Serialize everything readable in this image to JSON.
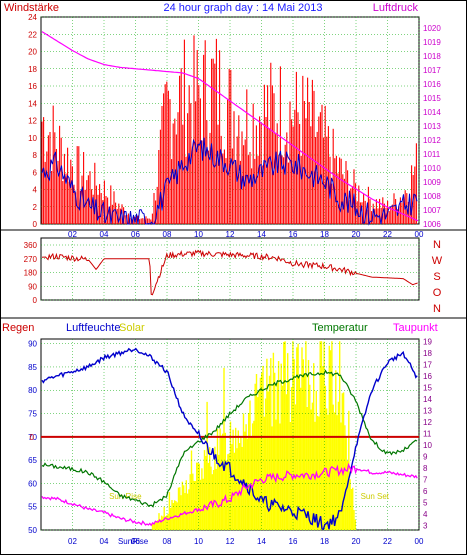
{
  "header": {
    "title": "24 hour graph day : 14 Mai 2013",
    "left_label": "Windstärke",
    "right_label": "Luftdruck"
  },
  "colors": {
    "title": "#1a1aff",
    "windspeed": "#ff0000",
    "gust": "#ff0000",
    "avg_wind": "#0000cc",
    "pressure": "#ff00ff",
    "direction": "#cc0000",
    "humidity": "#0000cc",
    "solar": "#ffff00",
    "temperature": "#007700",
    "dewpoint": "#ff00ff",
    "rain": "#cc0000",
    "grid": "#00aa00",
    "axis_left": "#cc0000",
    "axis_right": "#cc00cc",
    "axis_bottom": "#0000cc",
    "axis_bottom_right": "#880088"
  },
  "chart_data": [
    {
      "type": "bar",
      "name": "wind",
      "x_ticks": [
        "02",
        "04",
        "06",
        "08",
        "10",
        "12",
        "14",
        "16",
        "18",
        "20",
        "22",
        "00"
      ],
      "y_left_ticks": [
        0,
        2,
        4,
        6,
        8,
        10,
        12,
        14,
        16,
        18,
        20,
        22,
        24
      ],
      "y_left_range": [
        0,
        24
      ],
      "y_right_ticks": [
        1006,
        1007,
        1008,
        1009,
        1010,
        1011,
        1012,
        1013,
        1014,
        1015,
        1016,
        1017,
        1018,
        1019,
        1020
      ],
      "y_right_range": [
        1006,
        1020.8
      ],
      "hours": [
        0,
        1,
        2,
        3,
        4,
        5,
        6,
        7,
        8,
        9,
        10,
        11,
        12,
        13,
        14,
        15,
        16,
        17,
        18,
        19,
        20,
        21,
        22,
        23,
        24
      ],
      "gust": [
        18,
        14,
        10,
        8,
        6,
        3,
        1,
        1,
        20,
        22,
        22,
        24,
        20,
        18,
        19,
        20,
        19,
        18,
        14,
        9,
        6,
        4,
        3,
        5,
        11
      ],
      "avg_wind": [
        6,
        7,
        4,
        2,
        1,
        0.5,
        0.5,
        0.5,
        4,
        7,
        9,
        8,
        7,
        5,
        6,
        7,
        7,
        6,
        5,
        3,
        2,
        1,
        1,
        2,
        3
      ],
      "pressure": [
        1019.8,
        1019.1,
        1018.4,
        1017.8,
        1017.4,
        1017.2,
        1017.1,
        1017.0,
        1016.9,
        1016.8,
        1016.4,
        1015.6,
        1014.8,
        1014.0,
        1013.2,
        1012.4,
        1011.6,
        1010.8,
        1010.0,
        1009.2,
        1008.5,
        1007.8,
        1007.2,
        1006.7,
        1006.2
      ]
    },
    {
      "type": "line",
      "name": "direction",
      "y_left_ticks": [
        0,
        90,
        180,
        270,
        360
      ],
      "y_left_range": [
        0,
        360
      ],
      "y_right_labels": [
        "N",
        "W",
        "S",
        "O",
        "N"
      ],
      "hours": [
        0,
        1,
        2,
        3,
        3.5,
        4,
        5,
        6,
        6.9,
        7,
        8,
        9,
        10,
        11,
        12,
        13,
        14,
        15,
        16,
        17,
        18,
        19,
        20,
        21,
        22,
        23,
        23.6,
        24
      ],
      "values": [
        280,
        285,
        275,
        265,
        200,
        270,
        270,
        270,
        270,
        30,
        290,
        300,
        305,
        300,
        295,
        290,
        285,
        275,
        240,
        230,
        220,
        200,
        175,
        150,
        145,
        140,
        100,
        115
      ]
    },
    {
      "type": "line",
      "name": "humidity-temperature-solar",
      "left_label": "Regen",
      "humidity_label": "Luftfeuchte",
      "solar_label": "Solar",
      "temperature_label": "Temperatur",
      "dewpoint_label": "Taupunkt",
      "sunrise_label": "Sun Rise",
      "sunset_label": "Sun Set",
      "sunrise_tick_label": "SunRise",
      "rain_marker": "0",
      "x_ticks": [
        "02",
        "04",
        "06",
        "08",
        "10",
        "12",
        "14",
        "16",
        "18",
        "20",
        "22",
        "00"
      ],
      "y_left_ticks": [
        50,
        55,
        60,
        65,
        70,
        75,
        80,
        85,
        90
      ],
      "y_left_range": [
        50,
        91
      ],
      "y_right_ticks": [
        3,
        4,
        5,
        6,
        7,
        8,
        9,
        10,
        11,
        12,
        13,
        14,
        15,
        16,
        17,
        18,
        19
      ],
      "y_right_range": [
        2.6,
        19.2
      ],
      "rain_value": 0,
      "hours": [
        0,
        1,
        2,
        3,
        4,
        5,
        6,
        7,
        8,
        9,
        10,
        11,
        12,
        13,
        14,
        15,
        16,
        17,
        18,
        19,
        20,
        21,
        22,
        23,
        24
      ],
      "humidity": [
        82,
        83,
        84,
        85,
        87,
        88,
        89,
        87,
        84,
        75,
        70,
        66,
        63,
        60,
        56,
        55,
        54,
        53,
        51,
        53,
        68,
        80,
        86,
        88,
        82
      ],
      "temperature": [
        8.3,
        8.1,
        7.9,
        7.6,
        6.8,
        5.6,
        5.2,
        4.7,
        5.6,
        9.2,
        10.3,
        11.2,
        12.7,
        14.0,
        14.8,
        15.4,
        15.8,
        16.1,
        16.3,
        16.1,
        13.8,
        10.4,
        9.2,
        9.5,
        10.5
      ],
      "dewpoint": [
        5.5,
        5.3,
        4.9,
        4.4,
        4.1,
        3.6,
        3.3,
        3.1,
        3.6,
        4.0,
        4.4,
        4.8,
        5.3,
        6.3,
        7.0,
        7.2,
        7.4,
        7.4,
        7.6,
        7.8,
        8.0,
        7.6,
        7.6,
        7.4,
        7.2
      ],
      "solar": [
        0,
        0,
        0,
        0,
        0,
        0,
        0,
        0,
        1.5,
        4,
        6,
        8,
        10,
        12,
        14,
        15.5,
        16,
        16,
        16,
        16,
        0,
        0,
        0,
        0,
        0
      ],
      "sunrise_hour": 6.1,
      "sunset_hour": 20.1
    }
  ]
}
